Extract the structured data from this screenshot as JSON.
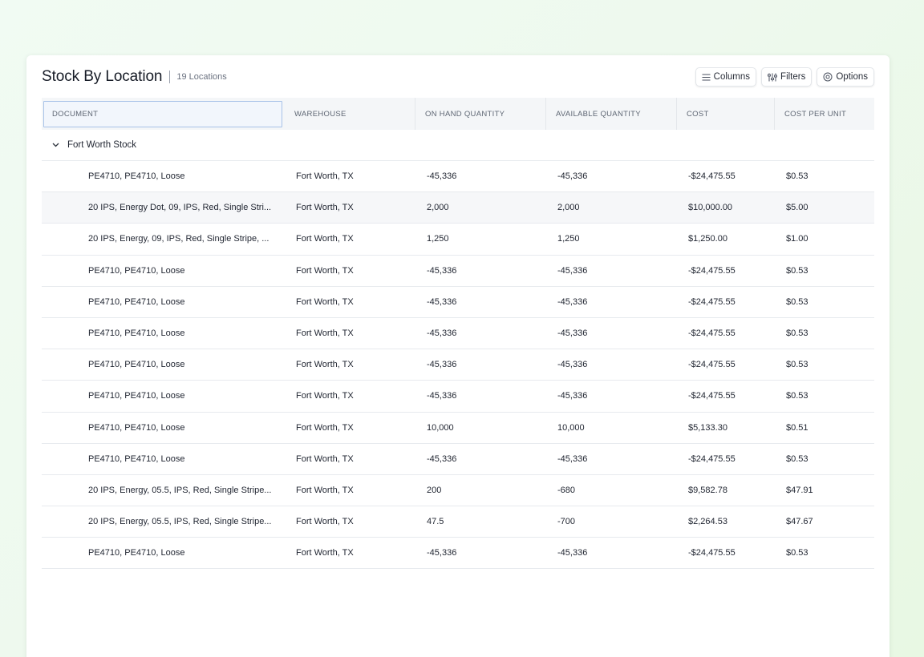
{
  "header": {
    "title": "Stock By Location",
    "count": "19 Locations"
  },
  "toolbar": {
    "columns_label": "Columns",
    "filters_label": "Filters",
    "options_label": "Options"
  },
  "table": {
    "columns": [
      "DOCUMENT",
      "WAREHOUSE",
      "ON HAND QUANTITY",
      "AVAILABLE QUANTITY",
      "COST",
      "COST PER UNIT"
    ],
    "group_label": "Fort Worth Stock",
    "rows": [
      [
        "PE4710, PE4710, Loose",
        "Fort Worth, TX",
        "-45,336",
        "-45,336",
        "-$24,475.55",
        "$0.53"
      ],
      [
        "20 IPS, Energy Dot, 09, IPS, Red, Single Stri...",
        "Fort Worth, TX",
        "2,000",
        "2,000",
        "$10,000.00",
        "$5.00"
      ],
      [
        "20 IPS, Energy, 09, IPS, Red, Single Stripe, ...",
        "Fort Worth, TX",
        "1,250",
        "1,250",
        "$1,250.00",
        "$1.00"
      ],
      [
        "PE4710, PE4710, Loose",
        "Fort Worth, TX",
        "-45,336",
        "-45,336",
        "-$24,475.55",
        "$0.53"
      ],
      [
        "PE4710, PE4710, Loose",
        "Fort Worth, TX",
        "-45,336",
        "-45,336",
        "-$24,475.55",
        "$0.53"
      ],
      [
        "PE4710, PE4710, Loose",
        "Fort Worth, TX",
        "-45,336",
        "-45,336",
        "-$24,475.55",
        "$0.53"
      ],
      [
        "PE4710, PE4710, Loose",
        "Fort Worth, TX",
        "-45,336",
        "-45,336",
        "-$24,475.55",
        "$0.53"
      ],
      [
        "PE4710, PE4710, Loose",
        "Fort Worth, TX",
        "-45,336",
        "-45,336",
        "-$24,475.55",
        "$0.53"
      ],
      [
        "PE4710, PE4710, Loose",
        "Fort Worth, TX",
        "10,000",
        "10,000",
        "$5,133.30",
        "$0.51"
      ],
      [
        "PE4710, PE4710, Loose",
        "Fort Worth, TX",
        "-45,336",
        "-45,336",
        "-$24,475.55",
        "$0.53"
      ],
      [
        "20 IPS, Energy, 05.5, IPS, Red, Single Stripe...",
        "Fort Worth, TX",
        "200",
        "-680",
        "$9,582.78",
        "$47.91"
      ],
      [
        "20 IPS, Energy, 05.5, IPS, Red, Single Stripe...",
        "Fort Worth, TX",
        "47.5",
        "-700",
        "$2,264.53",
        "$47.67"
      ],
      [
        "PE4710, PE4710, Loose",
        "Fort Worth, TX",
        "-45,336",
        "-45,336",
        "-$24,475.55",
        "$0.53"
      ]
    ]
  },
  "icons": {
    "columns": "list-lines-icon",
    "filters": "sliders-icon",
    "options": "gear-icon",
    "group_toggle": "chevron-down-icon"
  }
}
